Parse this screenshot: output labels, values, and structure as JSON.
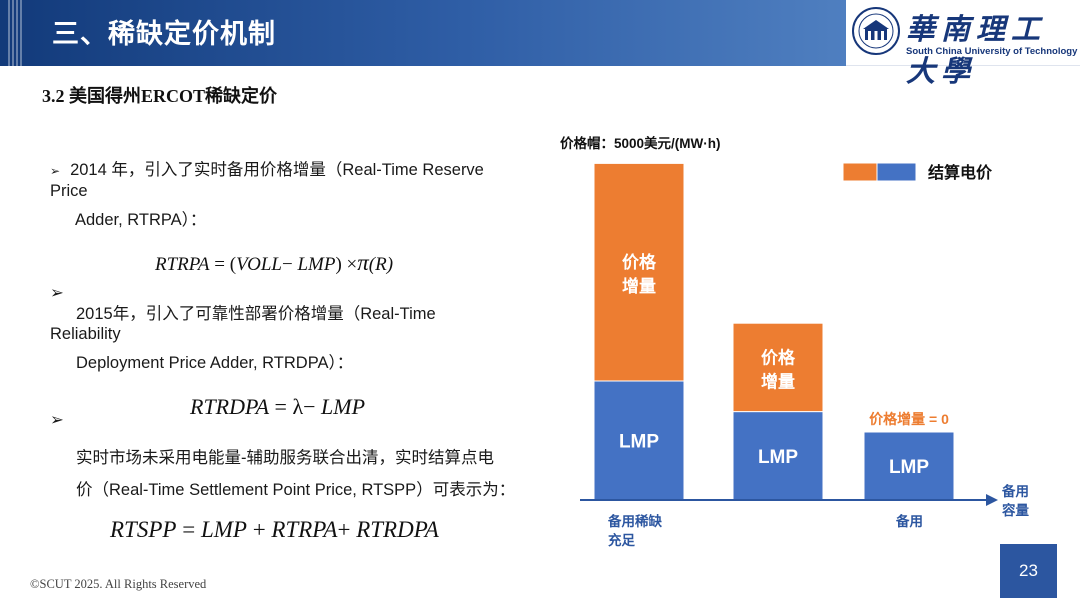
{
  "header": {
    "title": "三、稀缺定价机制",
    "logo_cn": "華南理工大學",
    "logo_en": "South China University of Technology"
  },
  "subtitle": "3.2 美国得州ERCOT稀缺定价",
  "body": {
    "bullet_symbol": "➢",
    "p1_line1": "2014 年，引入了实时备用价格增量（Real-Time Reserve",
    "p1_line2": "Price",
    "p1_line3": "Adder, RTRPA）：",
    "f1_lhs": "RTRPA",
    "f1_mid": " = (",
    "f1_voll": "VOLL",
    "f1_minus": "− ",
    "f1_lmp": "LMP",
    "f1_close": ") ×",
    "f1_pi": "π",
    "f1_r": "(R)",
    "p2_line1": "2015年，引入了可靠性部署价格增量（Real-Time",
    "p2_line2": "Reliability",
    "p2_line3": "Deployment Price Adder, RTRDPA）：",
    "f2_lhs": "RTRDPA",
    "f2_eq": " = λ− ",
    "f2_rhs": "LMP",
    "p3_line1": "实时市场未采用电能量-辅助服务联合出清，实时结算点电",
    "p3_line2": "价（Real-Time Settlement Point Price, RTSPP）可表示为：",
    "f3_lhs": "RTSPP",
    "f3_eq1": " = ",
    "f3_lmp": "LMP",
    "f3_plus1": " + ",
    "f3_rtrpa": "RTRPA",
    "f3_plus2": "+ ",
    "f3_rtrdpa": "RTRDPA"
  },
  "chart_data": {
    "type": "bar",
    "stacked": true,
    "title": "价格帽：5000美元/(MW·h)",
    "legend_label": "结算电价",
    "legend_placement": "top-right",
    "x_axis_label": "备用容量",
    "x_tick_labels": [
      "备用稀缺",
      "充足",
      "备用"
    ],
    "bars": [
      {
        "lmp_label": "LMP",
        "adder_label_1": "价格",
        "adder_label_2": "增量",
        "lmp": 35,
        "adder": 64
      },
      {
        "lmp_label": "LMP",
        "adder_label_1": "价格",
        "adder_label_2": "增量",
        "lmp": 26,
        "adder": 26
      },
      {
        "lmp_label": "LMP",
        "adder_label": "价格增量 = 0",
        "lmp": 20,
        "adder": 0
      }
    ],
    "colors": {
      "adder": "#ed7d31",
      "lmp": "#4472c4",
      "label_orange": "#ed7d31",
      "label_text": "#ffffff"
    }
  },
  "footer": "©SCUT 2025. All Rights Reserved",
  "page_number": "23"
}
